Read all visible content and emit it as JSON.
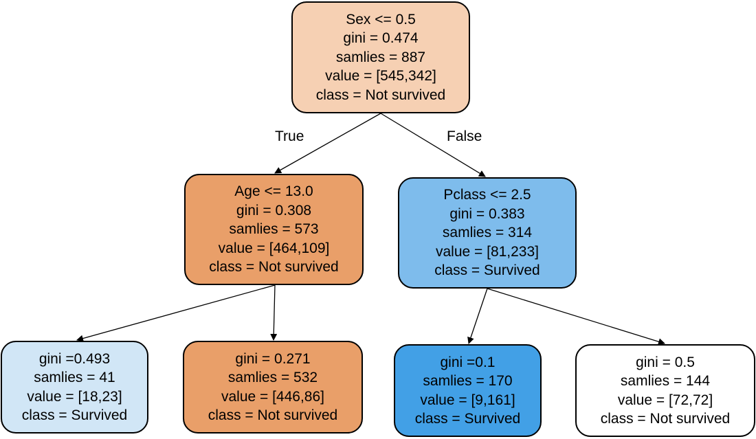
{
  "edge_labels": {
    "true_label": "True",
    "false_label": "False"
  },
  "nodes": {
    "root": {
      "color": "#f6d0b3",
      "lines": [
        "Sex <= 0.5",
        "gini = 0.474",
        "samlies = 887",
        "value = [545,342]",
        "class = Not survived"
      ]
    },
    "left": {
      "color": "#e99f69",
      "lines": [
        "Age <= 13.0",
        "gini = 0.308",
        "samlies = 573",
        "value = [464,109]",
        "class = Not survived"
      ]
    },
    "right": {
      "color": "#7ebcec",
      "lines": [
        "Pclass <= 2.5",
        "gini = 0.383",
        "samlies = 314",
        "value = [81,233]",
        "class = Survived"
      ]
    },
    "leaf_ll": {
      "color": "#d1e6f6",
      "lines": [
        "gini =0.493",
        "samlies = 41",
        "value = [18,23]",
        "class = Survived"
      ]
    },
    "leaf_lr": {
      "color": "#e99f69",
      "lines": [
        "gini = 0.271",
        "samlies = 532",
        "value = [446,86]",
        "class = Not survived"
      ]
    },
    "leaf_rl": {
      "color": "#42a0e6",
      "lines": [
        "gini =0.1",
        "samlies = 170",
        "value = [9,161]",
        "class = Survived"
      ]
    },
    "leaf_rr": {
      "color": "#ffffff",
      "lines": [
        "gini = 0.5",
        "samlies = 144",
        "value = [72,72]",
        "class = Not survived"
      ]
    }
  }
}
